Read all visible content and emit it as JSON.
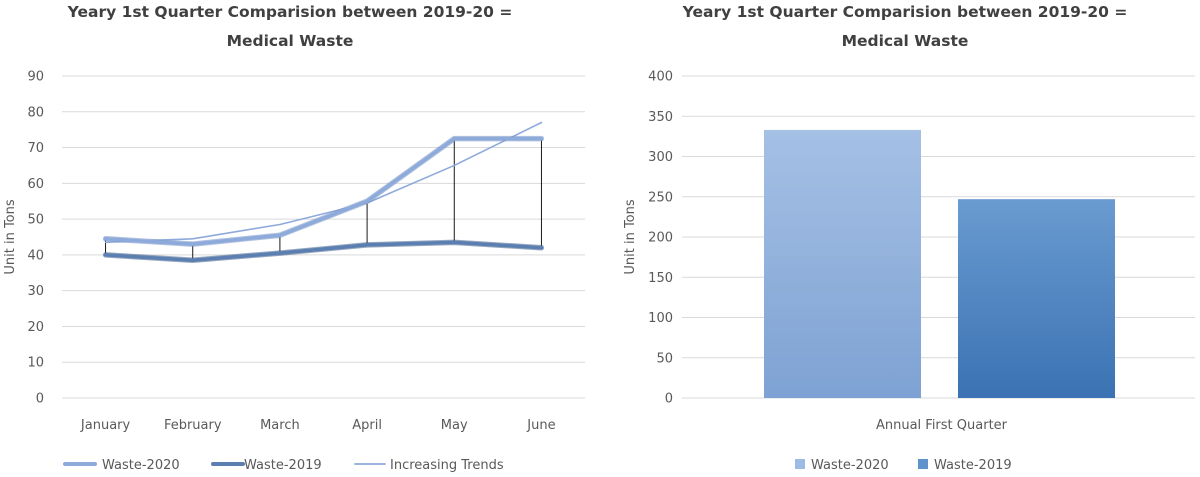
{
  "chart_data": [
    {
      "type": "line",
      "title_lines": [
        "Yeary 1st Quarter Comparision between 2019-20 =",
        "Medical Waste"
      ],
      "ylabel": "Unit in Tons",
      "xlabel": "",
      "ylim": [
        0,
        90
      ],
      "ytick_step": 10,
      "ytick_labels": [
        "0",
        "10",
        "20",
        "30",
        "40",
        "50",
        "60",
        "70",
        "80",
        "90"
      ],
      "categories": [
        "January",
        "February",
        "March",
        "April",
        "May",
        "June"
      ],
      "grid": true,
      "legend_position": "bottom",
      "series": [
        {
          "name": "Waste-2020",
          "values": [
            44.5,
            43,
            45.5,
            55,
            72.5,
            72.5
          ],
          "color": "#8eaadb",
          "style": "thick"
        },
        {
          "name": "Waste-2019",
          "values": [
            40,
            38.5,
            40.5,
            42.8,
            43.5,
            42
          ],
          "color": "#5b7fb0",
          "style": "thick"
        },
        {
          "name": "Increasing Trends",
          "values": [
            43.5,
            44.5,
            48.5,
            54.5,
            65,
            77
          ],
          "color": "#8eaadb",
          "style": "thin"
        }
      ],
      "high_low_lines": true
    },
    {
      "type": "bar",
      "title_lines": [
        "Yeary 1st Quarter Comparision between 2019-20 =",
        "Medical Waste"
      ],
      "ylabel": "Unit in Tons",
      "xlabel": "",
      "ylim": [
        0,
        400
      ],
      "ytick_step": 50,
      "ytick_labels": [
        "0",
        "50",
        "100",
        "150",
        "200",
        "250",
        "300",
        "350",
        "400"
      ],
      "categories": [
        "Annual First Quarter"
      ],
      "grid": true,
      "legend_position": "bottom",
      "series": [
        {
          "name": "Waste-2020",
          "values": [
            333
          ],
          "color": "#9dbbe3",
          "color_dark": "#7ea2d3"
        },
        {
          "name": "Waste-2019",
          "values": [
            247
          ],
          "color": "#5f93cc",
          "color_dark": "#3f77b8"
        }
      ]
    }
  ]
}
